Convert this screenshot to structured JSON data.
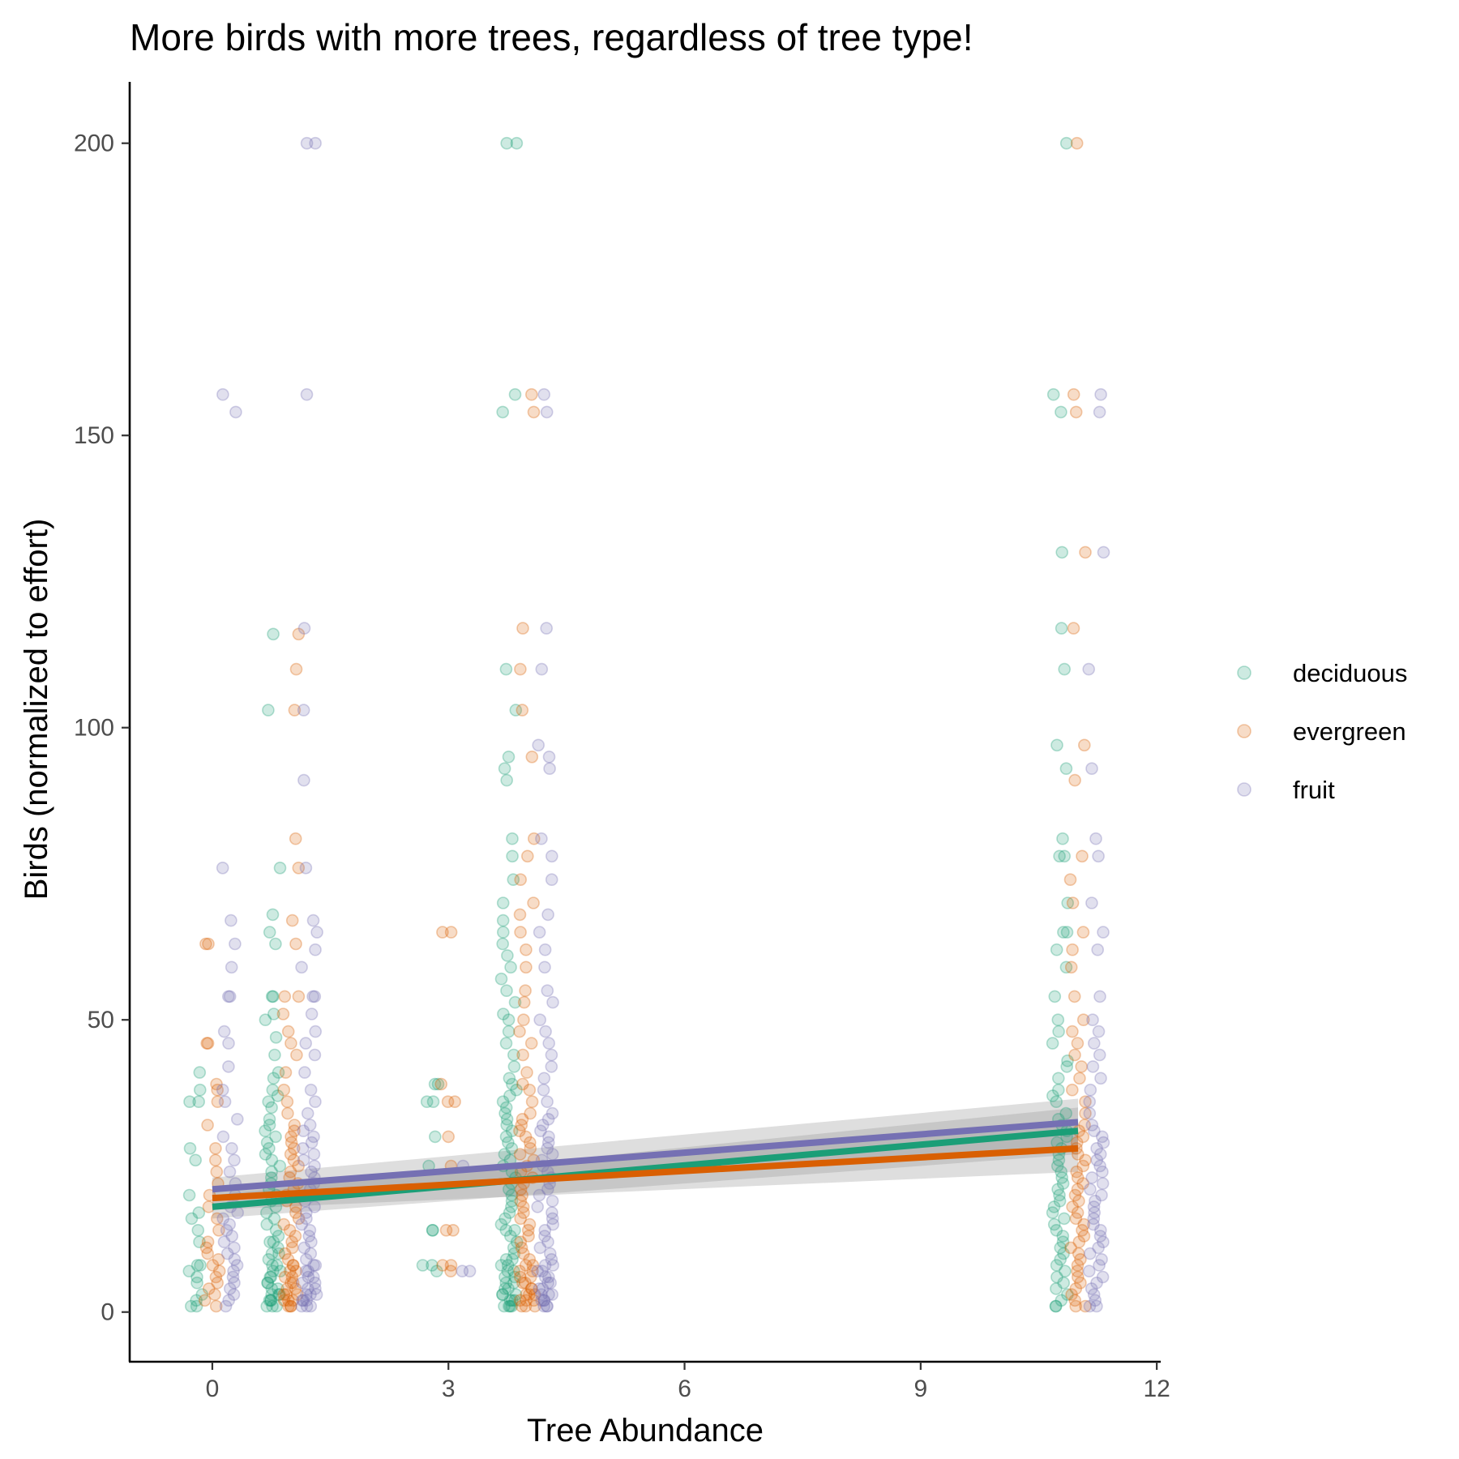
{
  "chart_data": {
    "type": "scatter",
    "title": "More birds with more trees, regardless of tree type!",
    "xlabel": "Tree Abundance",
    "ylabel": "Birds (normalized to effort)",
    "xlim": [
      -1.05,
      12.05
    ],
    "ylim": [
      -8.5,
      210.5
    ],
    "x_ticks": [
      "0",
      "3",
      "6",
      "9",
      "12"
    ],
    "y_ticks": [
      "0",
      "50",
      "100",
      "150",
      "200"
    ],
    "grid": false,
    "legend_position": "right",
    "jitter_width": 0.33,
    "series": [
      {
        "name": "deciduous",
        "color": "#1b9e77",
        "fit": {
          "x": [
            0,
            11
          ],
          "y": [
            18.0,
            31.0
          ],
          "ci_halfwidth": [
            2.0,
            4.0
          ]
        },
        "groups": [
          {
            "x": 0,
            "y": [
              1,
              1,
              2,
              3,
              5,
              6,
              7,
              8,
              8,
              12,
              14,
              16,
              17,
              20,
              26,
              28,
              36,
              36,
              38,
              41
            ]
          },
          {
            "x": 1,
            "y": [
              1,
              1,
              1,
              2,
              2,
              2,
              3,
              3,
              3,
              4,
              4,
              5,
              5,
              6,
              6,
              7,
              7,
              8,
              8,
              9,
              10,
              10,
              11,
              12,
              12,
              13,
              14,
              15,
              16,
              17,
              18,
              19,
              20,
              21,
              22,
              23,
              24,
              25,
              26,
              27,
              28,
              29,
              30,
              31,
              32,
              33,
              35,
              36,
              37,
              38,
              40,
              41,
              44,
              47,
              50,
              51,
              54,
              54,
              63,
              65,
              68,
              76,
              103,
              116
            ]
          },
          {
            "x": 3,
            "y": [
              7,
              8,
              8,
              14,
              14,
              25,
              30,
              36,
              36,
              39,
              39
            ]
          },
          {
            "x": 4,
            "y": [
              1,
              1,
              1,
              1,
              2,
              2,
              2,
              3,
              3,
              3,
              4,
              4,
              5,
              5,
              6,
              6,
              7,
              7,
              8,
              8,
              9,
              9,
              10,
              11,
              12,
              13,
              14,
              14,
              15,
              16,
              17,
              18,
              19,
              20,
              21,
              22,
              23,
              24,
              25,
              26,
              27,
              28,
              29,
              30,
              31,
              32,
              33,
              34,
              35,
              36,
              37,
              38,
              39,
              40,
              42,
              44,
              46,
              48,
              50,
              51,
              53,
              55,
              57,
              59,
              61,
              63,
              65,
              67,
              70,
              74,
              78,
              81,
              91,
              93,
              95,
              103,
              110,
              154,
              157,
              200,
              200
            ]
          },
          {
            "x": 11,
            "y": [
              1,
              1,
              2,
              3,
              4,
              5,
              6,
              7,
              8,
              9,
              10,
              11,
              12,
              13,
              14,
              15,
              16,
              17,
              18,
              19,
              20,
              21,
              22,
              23,
              24,
              25,
              26,
              27,
              28,
              29,
              30,
              31,
              32,
              33,
              34,
              36,
              37,
              38,
              40,
              42,
              43,
              46,
              48,
              50,
              54,
              59,
              62,
              65,
              65,
              70,
              78,
              78,
              81,
              93,
              97,
              110,
              117,
              130,
              154,
              157,
              200
            ]
          }
        ]
      },
      {
        "name": "evergreen",
        "color": "#d95f02",
        "fit": {
          "x": [
            0,
            11
          ],
          "y": [
            19.5,
            28.0
          ],
          "ci_halfwidth": [
            2.0,
            4.0
          ]
        },
        "groups": [
          {
            "x": 0,
            "y": [
              1,
              2,
              3,
              4,
              5,
              6,
              7,
              8,
              9,
              10,
              11,
              12,
              14,
              16,
              18,
              20,
              22,
              24,
              26,
              28,
              32,
              36,
              38,
              39,
              46,
              46,
              63,
              63
            ]
          },
          {
            "x": 1,
            "y": [
              1,
              1,
              1,
              2,
              2,
              2,
              3,
              3,
              3,
              4,
              4,
              5,
              5,
              6,
              6,
              7,
              7,
              8,
              8,
              9,
              10,
              11,
              12,
              13,
              14,
              15,
              16,
              17,
              18,
              19,
              20,
              21,
              22,
              23,
              24,
              25,
              26,
              27,
              28,
              29,
              30,
              31,
              32,
              34,
              36,
              38,
              41,
              44,
              46,
              48,
              51,
              54,
              54,
              63,
              67,
              76,
              81,
              103,
              110,
              116
            ]
          },
          {
            "x": 3,
            "y": [
              7,
              8,
              8,
              14,
              14,
              25,
              30,
              36,
              36,
              39,
              65,
              65
            ]
          },
          {
            "x": 4,
            "y": [
              1,
              1,
              1,
              2,
              2,
              2,
              3,
              3,
              3,
              4,
              4,
              5,
              5,
              6,
              6,
              7,
              7,
              8,
              8,
              9,
              10,
              11,
              12,
              13,
              14,
              15,
              16,
              17,
              18,
              19,
              20,
              21,
              22,
              23,
              24,
              25,
              26,
              27,
              28,
              29,
              30,
              31,
              32,
              33,
              34,
              36,
              38,
              39,
              41,
              44,
              46,
              48,
              50,
              53,
              55,
              59,
              62,
              65,
              68,
              70,
              74,
              78,
              81,
              95,
              103,
              110,
              117,
              154,
              157
            ]
          },
          {
            "x": 11,
            "y": [
              1,
              1,
              2,
              3,
              4,
              5,
              6,
              7,
              8,
              9,
              10,
              11,
              12,
              13,
              14,
              15,
              16,
              17,
              18,
              19,
              20,
              21,
              22,
              23,
              24,
              25,
              26,
              27,
              28,
              29,
              30,
              31,
              32,
              34,
              36,
              38,
              40,
              42,
              44,
              46,
              48,
              50,
              54,
              59,
              62,
              65,
              70,
              74,
              78,
              91,
              97,
              117,
              130,
              154,
              157,
              200
            ]
          }
        ]
      },
      {
        "name": "fruit",
        "color": "#7570b3",
        "fit": {
          "x": [
            0,
            11
          ],
          "y": [
            21.0,
            32.5
          ],
          "ci_halfwidth": [
            2.0,
            4.0
          ]
        },
        "groups": [
          {
            "x": 0,
            "y": [
              1,
              2,
              3,
              4,
              5,
              6,
              7,
              8,
              9,
              10,
              11,
              12,
              13,
              14,
              15,
              16,
              17,
              18,
              20,
              22,
              24,
              26,
              28,
              30,
              33,
              36,
              38,
              42,
              46,
              48,
              54,
              54,
              59,
              63,
              67,
              76,
              154,
              157
            ]
          },
          {
            "x": 1,
            "y": [
              1,
              1,
              1,
              2,
              2,
              2,
              3,
              3,
              3,
              4,
              4,
              5,
              5,
              6,
              6,
              7,
              7,
              8,
              8,
              9,
              10,
              11,
              12,
              13,
              14,
              15,
              16,
              17,
              18,
              19,
              20,
              21,
              22,
              23,
              24,
              25,
              26,
              27,
              28,
              29,
              30,
              31,
              32,
              34,
              36,
              38,
              41,
              44,
              46,
              48,
              51,
              54,
              54,
              59,
              62,
              65,
              67,
              76,
              91,
              103,
              117,
              157,
              200,
              200
            ]
          },
          {
            "x": 3,
            "y": [
              7,
              7,
              25
            ]
          },
          {
            "x": 4,
            "y": [
              1,
              1,
              1,
              2,
              2,
              2,
              3,
              3,
              3,
              4,
              4,
              5,
              5,
              6,
              6,
              7,
              7,
              8,
              8,
              9,
              10,
              11,
              12,
              13,
              14,
              15,
              16,
              17,
              18,
              19,
              20,
              21,
              22,
              23,
              24,
              25,
              26,
              27,
              28,
              29,
              30,
              31,
              32,
              33,
              34,
              36,
              38,
              40,
              42,
              44,
              46,
              48,
              50,
              53,
              55,
              59,
              62,
              65,
              68,
              74,
              78,
              81,
              93,
              95,
              97,
              110,
              117,
              154,
              157
            ]
          },
          {
            "x": 11,
            "y": [
              1,
              1,
              2,
              3,
              4,
              5,
              6,
              7,
              8,
              9,
              10,
              11,
              12,
              13,
              14,
              15,
              16,
              17,
              18,
              19,
              20,
              21,
              22,
              23,
              24,
              25,
              26,
              27,
              28,
              29,
              30,
              31,
              32,
              34,
              36,
              38,
              40,
              42,
              44,
              46,
              48,
              50,
              54,
              62,
              65,
              70,
              78,
              81,
              93,
              110,
              130,
              154,
              157
            ]
          }
        ]
      }
    ]
  }
}
